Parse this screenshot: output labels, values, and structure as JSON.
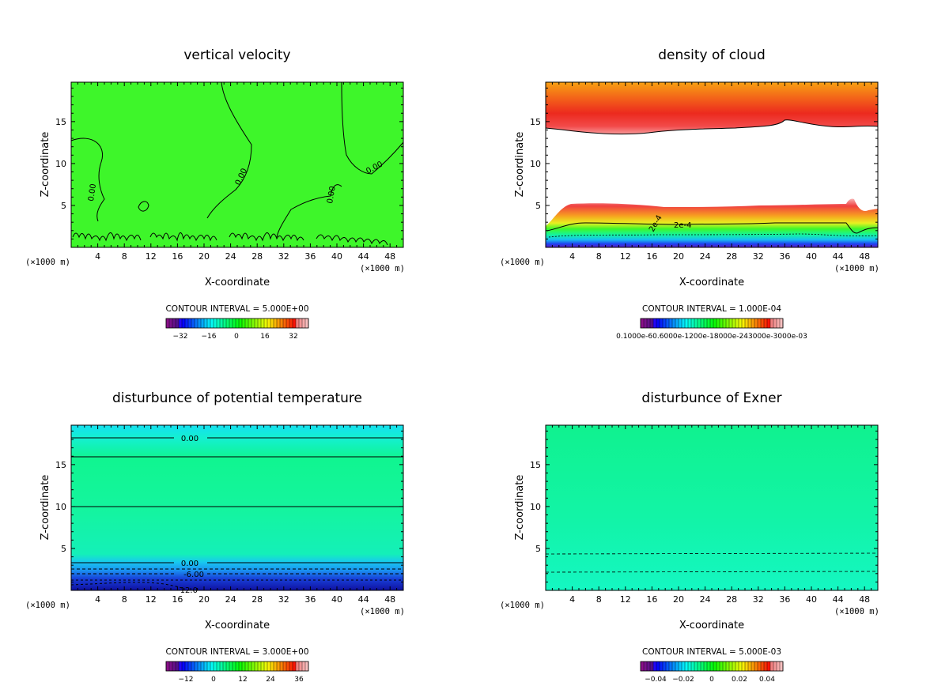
{
  "colors": {
    "green": "#3ef62a",
    "cyan_green": "#14f59e",
    "exner_top": "#10f28f",
    "exner_bottom": "#14f7c2",
    "red": "#ec2a1e",
    "orange": "#f8a112"
  },
  "chart_data": [
    {
      "type": "heatmap",
      "title": "vertical velocity",
      "xlabel": "X-coordinate",
      "ylabel": "Z-coordinate",
      "xunit_left": "(×1000 m)",
      "xunit_right": "(×1000 m)",
      "xlim": [
        0,
        50
      ],
      "ylim": [
        0,
        19.7
      ],
      "xticks": [
        4,
        8,
        12,
        16,
        20,
        24,
        28,
        32,
        36,
        40,
        44,
        48
      ],
      "yticks": [
        5,
        10,
        15
      ],
      "contour_labels": [
        "0.00",
        "0.00",
        "0.00",
        "0.00"
      ],
      "contour_interval": "CONTOUR INTERVAL = 5.000E+00",
      "colorbar_labels": [
        "−32",
        "−16",
        "0",
        "16",
        "32"
      ]
    },
    {
      "type": "heatmap",
      "title": "density of cloud",
      "xlabel": "X-coordinate",
      "ylabel": "Z-coordinate",
      "xunit_left": "(×1000 m)",
      "xunit_right": "(×1000 m)",
      "xlim": [
        0,
        50
      ],
      "ylim": [
        0,
        19.7
      ],
      "xticks": [
        4,
        8,
        12,
        16,
        20,
        24,
        28,
        32,
        36,
        40,
        44,
        48
      ],
      "yticks": [
        5,
        10,
        15
      ],
      "contour_labels": [
        "2e-4",
        "2e-4"
      ],
      "contour_interval": "CONTOUR INTERVAL = 1.000E-04",
      "colorbar_labels": [
        "0.1000e-60.6000e-1200e-18000e-243000e-3000e-03"
      ]
    },
    {
      "type": "heatmap",
      "title": "disturbunce of potential temperature",
      "xlabel": "X-coordinate",
      "ylabel": "Z-coordinate",
      "xunit_left": "(×1000 m)",
      "xunit_right": "(×1000 m)",
      "xlim": [
        0,
        50
      ],
      "ylim": [
        0,
        19.7
      ],
      "xticks": [
        4,
        8,
        12,
        16,
        20,
        24,
        28,
        32,
        36,
        40,
        44,
        48
      ],
      "yticks": [
        5,
        10,
        15
      ],
      "contour_labels": [
        "0.00",
        "0.00",
        "-6.00",
        "-12.0"
      ],
      "contour_interval": "CONTOUR INTERVAL = 3.000E+00",
      "colorbar_labels": [
        "−12",
        "0",
        "12",
        "24",
        "36"
      ]
    },
    {
      "type": "heatmap",
      "title": "disturbunce of Exner",
      "xlabel": "X-coordinate",
      "ylabel": "Z-coordinate",
      "xunit_left": "(×1000 m)",
      "xunit_right": "(×1000 m)",
      "xlim": [
        0,
        50
      ],
      "ylim": [
        0,
        19.7
      ],
      "xticks": [
        4,
        8,
        12,
        16,
        20,
        24,
        28,
        32,
        36,
        40,
        44,
        48
      ],
      "yticks": [
        5,
        10,
        15
      ],
      "contour_labels": [],
      "contour_interval": "CONTOUR INTERVAL = 5.000E-03",
      "colorbar_labels": [
        "−0.04",
        "−0.02",
        "0",
        "0.02",
        "0.04"
      ]
    }
  ]
}
